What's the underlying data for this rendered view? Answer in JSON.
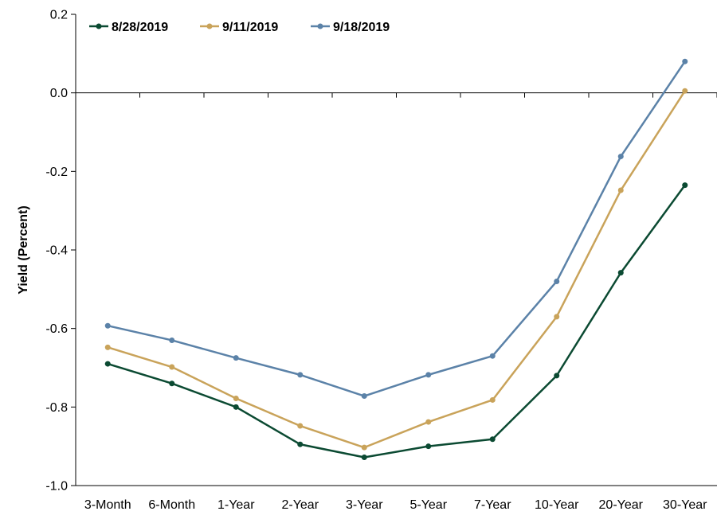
{
  "chart_data": {
    "type": "line",
    "title": "",
    "xlabel": "",
    "ylabel": "Yield (Percent)",
    "ylim": [
      -1.0,
      0.2
    ],
    "yticks": [
      -1.0,
      -0.8,
      -0.6,
      -0.4,
      -0.2,
      0.0,
      0.2
    ],
    "ytick_labels": [
      "-1.0",
      "-0.8",
      "-0.6",
      "-0.4",
      "-0.2",
      "0.0",
      "0.2"
    ],
    "categories": [
      "3-Month",
      "6-Month",
      "1-Year",
      "2-Year",
      "3-Year",
      "5-Year",
      "7-Year",
      "10-Year",
      "20-Year",
      "30-Year"
    ],
    "legend_position": "top-left",
    "grid": false,
    "series": [
      {
        "name": "8/28/2019",
        "color": "#0b4a32",
        "values": [
          -0.69,
          -0.74,
          -0.8,
          -0.895,
          -0.928,
          -0.9,
          -0.882,
          -0.72,
          -0.458,
          -0.235
        ]
      },
      {
        "name": "9/11/2019",
        "color": "#c9a35a",
        "values": [
          -0.648,
          -0.698,
          -0.778,
          -0.848,
          -0.903,
          -0.838,
          -0.782,
          -0.57,
          -0.248,
          0.005
        ]
      },
      {
        "name": "9/18/2019",
        "color": "#5b82a8",
        "values": [
          -0.593,
          -0.63,
          -0.675,
          -0.718,
          -0.772,
          -0.718,
          -0.67,
          -0.48,
          -0.162,
          0.08
        ]
      }
    ]
  }
}
